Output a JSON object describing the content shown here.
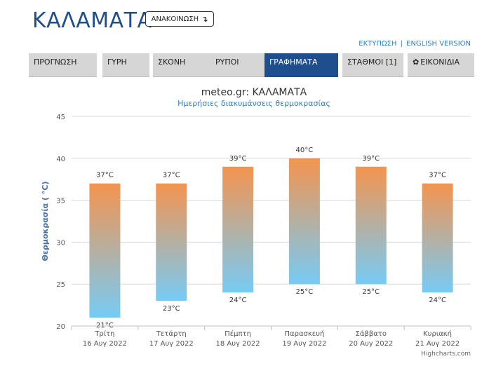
{
  "header": {
    "title": "ΚΑΛΑΜΑΤΑ",
    "announcement_label": "ΑΝΑΚΟΙΝΩΣΗ",
    "announcement_icon": "arrow-down-icon",
    "print_link": "ΕΚΤΥΠΩΣΗ",
    "separator": "|",
    "english_link": "ENGLISH VERSION"
  },
  "tabs": [
    {
      "label": "ΠΡΟΓΝΩΣΗ",
      "active": false
    },
    {
      "label": "ΓΥΡΗ",
      "active": false
    },
    {
      "label": "ΣΚΟΝΗ",
      "active": false
    },
    {
      "label": "ΡΥΠΟΙ",
      "active": false
    },
    {
      "label": "ΓΡΑΦΗΜΑΤΑ",
      "active": true
    },
    {
      "label": "ΣΤΑΘΜΟΙ [1]",
      "active": false
    },
    {
      "label": "ΕΙΚΟΝΙΔΙΑ",
      "active": false,
      "icon": "gear-icon"
    }
  ],
  "colors": {
    "brand": "#1f4e8c",
    "bar_top": "#f4944f",
    "bar_bottom": "#77cbf5",
    "tab_bg": "#d6d6d6",
    "link": "#2d7fc1"
  },
  "chart_data": {
    "type": "bar",
    "subtype": "columnrange",
    "title": "meteo.gr: ΚΑΛΑΜΑΤΑ",
    "subtitle": "Ημερήσιες διακυμάνσεις θερμοκρασίας",
    "ylabel": "Θερμοκρασία ( °C)",
    "ylim": [
      20,
      45
    ],
    "yticks": [
      20,
      25,
      30,
      35,
      40,
      45
    ],
    "grid": true,
    "categories": [
      {
        "day": "Τρίτη",
        "date": "16 Αυγ 2022"
      },
      {
        "day": "Τετάρτη",
        "date": "17 Αυγ 2022"
      },
      {
        "day": "Πέμπτη",
        "date": "18 Αυγ 2022"
      },
      {
        "day": "Παρασκευή",
        "date": "19 Αυγ 2022"
      },
      {
        "day": "Σάββατο",
        "date": "20 Αυγ 2022"
      },
      {
        "day": "Κυριακή",
        "date": "21 Αυγ 2022"
      }
    ],
    "low": [
      21,
      23,
      24,
      25,
      25,
      24
    ],
    "high": [
      37,
      37,
      39,
      40,
      39,
      37
    ],
    "unit_suffix": "°C",
    "credits": "Highcharts.com"
  }
}
